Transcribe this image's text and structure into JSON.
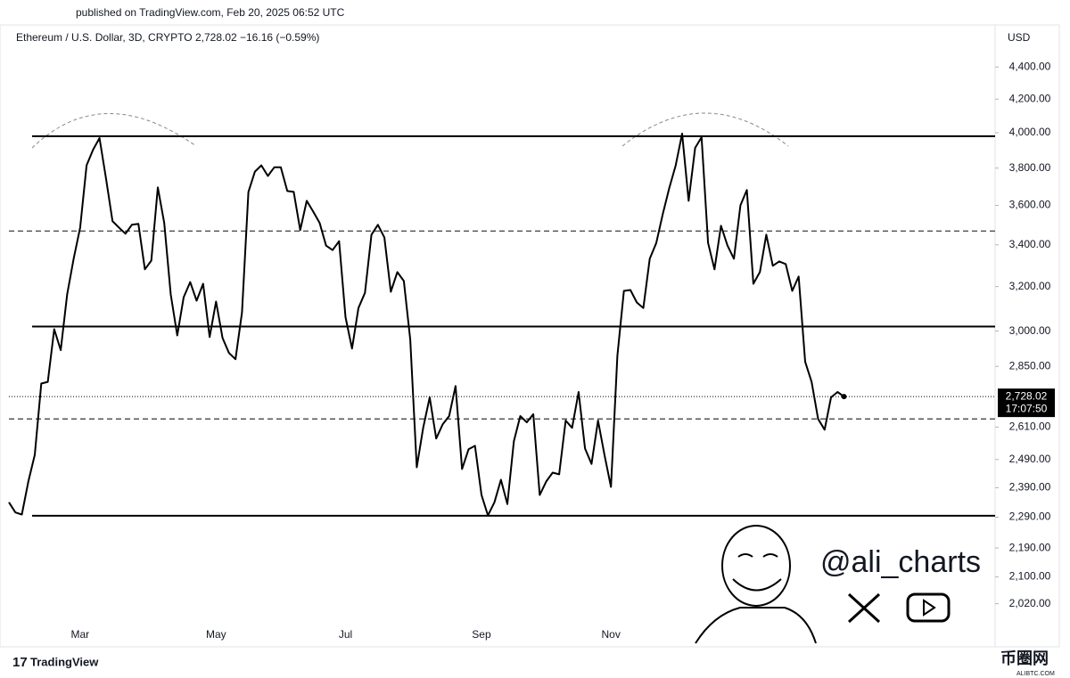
{
  "header": {
    "published": "published on TradingView.com, Feb 20, 2025 06:52 UTC",
    "brand": "TradingView",
    "handle": "@ali_charts",
    "watermark": "币圈网",
    "watermark_sub": "ALIBTC.COM"
  },
  "chart_data": {
    "type": "line",
    "title": "Ethereum / U.S. Dollar, 3D, CRYPTO  2,728.02  −16.16 (−0.59%)",
    "y_axis_label": "USD",
    "log_scale": true,
    "ylim": [
      1900,
      4665
    ],
    "yticks": [
      {
        "value": 4400,
        "label": "4,400.00"
      },
      {
        "value": 4200,
        "label": "4,200.00"
      },
      {
        "value": 4000,
        "label": "4,000.00"
      },
      {
        "value": 3800,
        "label": "3,800.00"
      },
      {
        "value": 3600,
        "label": "3,600.00"
      },
      {
        "value": 3400,
        "label": "3,400.00"
      },
      {
        "value": 3200,
        "label": "3,200.00"
      },
      {
        "value": 3000,
        "label": "3,000.00"
      },
      {
        "value": 2850,
        "label": "2,850.00"
      },
      {
        "value": 2610,
        "label": "2,610.00"
      },
      {
        "value": 2490,
        "label": "2,490.00"
      },
      {
        "value": 2390,
        "label": "2,390.00"
      },
      {
        "value": 2290,
        "label": "2,290.00"
      },
      {
        "value": 2190,
        "label": "2,190.00"
      },
      {
        "value": 2100,
        "label": "2,100.00"
      },
      {
        "value": 2020,
        "label": "2,020.00"
      }
    ],
    "categories": [
      null,
      null,
      null,
      null,
      null,
      null,
      null,
      null,
      null,
      null,
      null,
      "Mar",
      null,
      null,
      null,
      null,
      null,
      null,
      null,
      null,
      null,
      null,
      null,
      null,
      null,
      null,
      null,
      null,
      null,
      null,
      null,
      null,
      "May",
      null,
      null,
      null,
      null,
      null,
      null,
      null,
      null,
      null,
      null,
      null,
      null,
      null,
      null,
      null,
      null,
      null,
      null,
      null,
      "Jul",
      null,
      null,
      null,
      null,
      null,
      null,
      null,
      null,
      null,
      null,
      null,
      null,
      null,
      null,
      null,
      null,
      null,
      null,
      null,
      null,
      "Sep",
      null,
      null,
      null,
      null,
      null,
      null,
      null,
      null,
      null,
      null,
      null,
      null,
      null,
      null,
      null,
      null,
      null,
      null,
      null,
      "Nov",
      null,
      null,
      null,
      null,
      null,
      null,
      null,
      null,
      null,
      null,
      null,
      null,
      null,
      null,
      null,
      null,
      null,
      null,
      null,
      null,
      null,
      null,
      null,
      null,
      null,
      null,
      null,
      null,
      null,
      null,
      null,
      null,
      null,
      null,
      null,
      null
    ],
    "series": [
      {
        "name": "ETHUSD",
        "color": "#000000",
        "values": [
          2340,
          2306,
          2299,
          2412,
          2507,
          2780,
          2787,
          3008,
          2918,
          3163,
          3332,
          3486,
          3815,
          3903,
          3969,
          3743,
          3518,
          3486,
          3455,
          3500,
          3505,
          3281,
          3323,
          3695,
          3509,
          3163,
          2981,
          3151,
          3221,
          3135,
          3213,
          2974,
          3131,
          2970,
          2906,
          2880,
          3082,
          3671,
          3781,
          3815,
          3757,
          3805,
          3805,
          3676,
          3671,
          3473,
          3624,
          3568,
          3509,
          3396,
          3374,
          3418,
          3061,
          2925,
          3102,
          3171,
          3450,
          3500,
          3436,
          3176,
          3268,
          3226,
          2963,
          2462,
          2607,
          2725,
          2567,
          2620,
          2652,
          2770,
          2456,
          2527,
          2540,
          2365,
          2296,
          2340,
          2418,
          2334,
          2557,
          2652,
          2628,
          2659,
          2365,
          2412,
          2443,
          2437,
          2635,
          2607,
          2746,
          2530,
          2474,
          2635,
          2507,
          2393,
          2895,
          3180,
          3184,
          3127,
          3102,
          3332,
          3409,
          3555,
          3690,
          3815,
          3995,
          3624,
          3913,
          3974,
          3409,
          3281,
          3495,
          3396,
          3332,
          3600,
          3681,
          3213,
          3268,
          3450,
          3298,
          3319,
          3306,
          3180,
          3247,
          2869,
          2787,
          2641,
          2600,
          2725,
          2746,
          2728.02
        ]
      }
    ],
    "levels": [
      {
        "value": 3980,
        "style": "solid"
      },
      {
        "value": 3468,
        "style": "dashed"
      },
      {
        "value": 3020,
        "style": "solid"
      },
      {
        "value": 2641,
        "style": "dashed"
      },
      {
        "value": 2295,
        "style": "solid"
      }
    ],
    "last_price": {
      "value": 2728.02,
      "label": "2,728.02",
      "countdown": "17:07:50"
    }
  }
}
